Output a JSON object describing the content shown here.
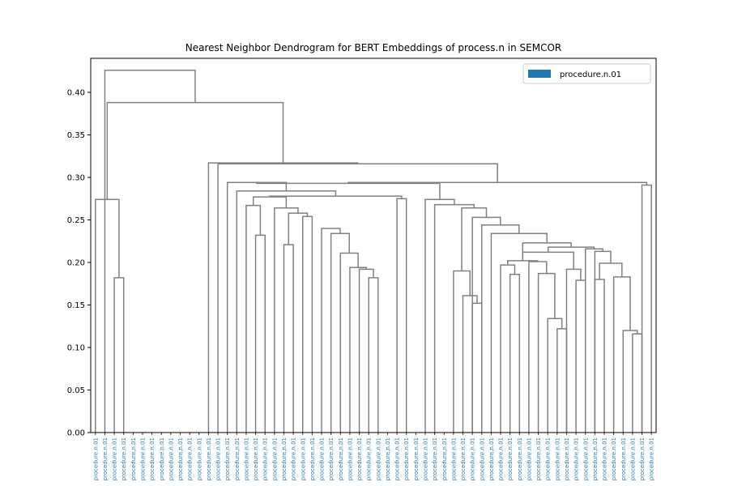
{
  "chart_data": {
    "type": "dendrogram",
    "title": "Nearest Neighbor Dendrogram for BERT Embeddings of process.n in SEMCOR",
    "xlabel": "",
    "ylabel": "",
    "ylim": [
      0,
      0.44
    ],
    "yticks": [
      "0.00",
      "0.05",
      "0.10",
      "0.15",
      "0.20",
      "0.25",
      "0.30",
      "0.35",
      "0.40"
    ],
    "leaf_label": "procedure.n.01",
    "leaf_count": 60,
    "legend": {
      "entries": [
        {
          "label": "procedure.n.01",
          "color": "#1f77b4"
        }
      ],
      "position": "top-right"
    },
    "link_color": "#808080",
    "leaf_label_color": "#1f77b4",
    "merges": [
      [
        2,
        3,
        0.182
      ],
      [
        0,
        60,
        0.274
      ],
      [
        29,
        30,
        0.182
      ],
      [
        28,
        62,
        0.192
      ],
      [
        27,
        63,
        0.194
      ],
      [
        26,
        64,
        0.211
      ],
      [
        25,
        65,
        0.234
      ],
      [
        24,
        66,
        0.24
      ],
      [
        20,
        21,
        0.221
      ],
      [
        22,
        23,
        0.254
      ],
      [
        68,
        69,
        0.258
      ],
      [
        19,
        70,
        0.264
      ],
      [
        17,
        18,
        0.232
      ],
      [
        16,
        72,
        0.267
      ],
      [
        71,
        73,
        0.277
      ],
      [
        32,
        33,
        0.275
      ],
      [
        74,
        75,
        0.278
      ],
      [
        15,
        76,
        0.284
      ],
      [
        14,
        77,
        0.294
      ],
      [
        40,
        41,
        0.152
      ],
      [
        39,
        79,
        0.161
      ],
      [
        38,
        80,
        0.19
      ],
      [
        44,
        45,
        0.186
      ],
      [
        43,
        82,
        0.197
      ],
      [
        49,
        50,
        0.122
      ],
      [
        48,
        84,
        0.134
      ],
      [
        47,
        85,
        0.187
      ],
      [
        46,
        86,
        0.201
      ],
      [
        83,
        87,
        0.202
      ],
      [
        51,
        52,
        0.179
      ],
      [
        50,
        89,
        0.192
      ],
      [
        88,
        90,
        0.212
      ],
      [
        57,
        58,
        0.116
      ],
      [
        56,
        92,
        0.12
      ],
      [
        55,
        93,
        0.183
      ],
      [
        53,
        54,
        0.18
      ],
      [
        95,
        94,
        0.199
      ],
      [
        53,
        96,
        0.213
      ],
      [
        52,
        97,
        0.216
      ],
      [
        91,
        98,
        0.218
      ],
      [
        88,
        99,
        0.223
      ],
      [
        42,
        100,
        0.234
      ],
      [
        41,
        101,
        0.244
      ],
      [
        40,
        102,
        0.253
      ],
      [
        81,
        103,
        0.264
      ],
      [
        36,
        104,
        0.268
      ],
      [
        35,
        105,
        0.274
      ],
      [
        78,
        106,
        0.293
      ],
      [
        58,
        59,
        0.291
      ],
      [
        107,
        108,
        0.294
      ],
      [
        13,
        109,
        0.316
      ],
      [
        12,
        110,
        0.317
      ],
      [
        61,
        111,
        0.388
      ],
      [
        1,
        112,
        0.426
      ]
    ]
  }
}
